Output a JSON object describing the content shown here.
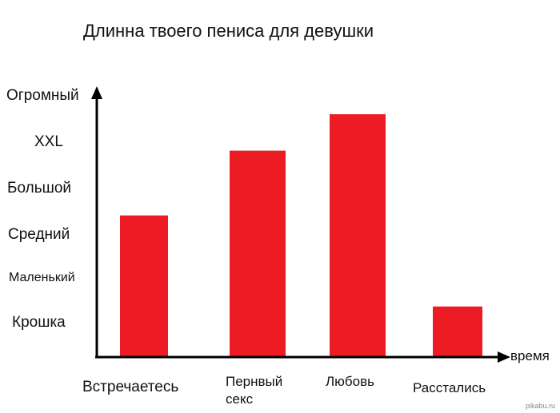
{
  "chart_data": {
    "type": "bar",
    "title": "Длинна твоего пениса для девушки",
    "xlabel": "время",
    "ylabel": "",
    "y_levels": [
      "Крошка",
      "Маленький",
      "Средний",
      "Большой",
      "XXL",
      "Огромный"
    ],
    "categories": [
      "Встречаетесь",
      "Пернвый секс",
      "Любовь",
      "Расстались"
    ],
    "values": [
      2.75,
      4.35,
      5.25,
      0.5
    ],
    "ylim": [
      -0.75,
      5.25
    ],
    "grid": false,
    "bar_color": "#ed1c24"
  },
  "watermark": "pikabu.ru"
}
